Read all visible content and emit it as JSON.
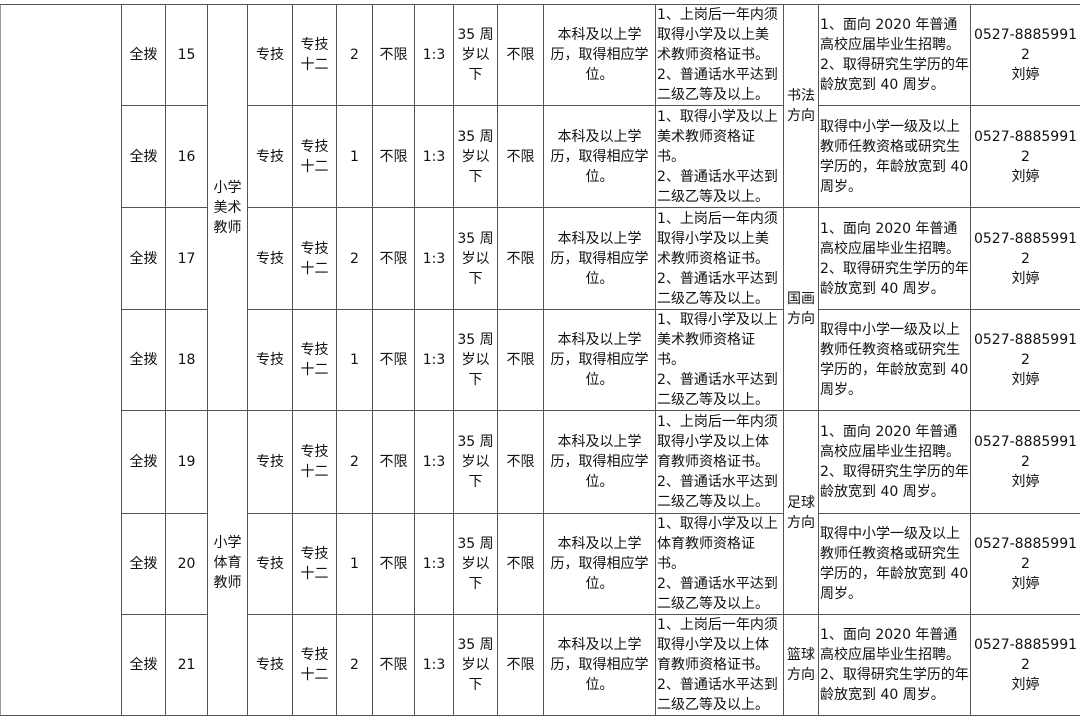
{
  "table": {
    "rows": [
      {
        "type": "全拨",
        "no": "15",
        "position": "小学\n美术\n教师",
        "position_span": 4,
        "category": "专技",
        "grade": "专技\n十二",
        "count": "2",
        "major": "不限",
        "ratio": "1:3",
        "age": "35 周\n岁以\n下",
        "other": "不限",
        "education": "本科及以上学历，取得相应学位。",
        "conditions": "1、上岗后一年内须取得小学及以上美术教师资格证书。\n2、普通话水平达到二级乙等及以上。",
        "direction": "书法\n方向",
        "direction_span": 2,
        "notes": "1、面向 2020 年普通高校应届毕业生招聘。\n2、取得研究生学历的年龄放宽到 40 周岁。",
        "contact": "0527-88859912\n刘婷"
      },
      {
        "type": "全拨",
        "no": "16",
        "category": "专技",
        "grade": "专技\n十二",
        "count": "1",
        "major": "不限",
        "ratio": "1:3",
        "age": "35 周\n岁以\n下",
        "other": "不限",
        "education": "本科及以上学历，取得相应学位。",
        "conditions": "1、取得小学及以上美术教师资格证书。\n2、普通话水平达到二级乙等及以上。",
        "notes": "取得中小学一级及以上教师任教资格或研究生学历的，年龄放宽到 40 周岁。",
        "contact": "0527-88859912\n刘婷"
      },
      {
        "type": "全拨",
        "no": "17",
        "category": "专技",
        "grade": "专技\n十二",
        "count": "2",
        "major": "不限",
        "ratio": "1:3",
        "age": "35 周\n岁以\n下",
        "other": "不限",
        "education": "本科及以上学历，取得相应学位。",
        "conditions": "1、上岗后一年内须取得小学及以上美术教师资格证书。\n2、普通话水平达到二级乙等及以上。",
        "direction": "国画\n方向",
        "direction_span": 2,
        "notes": "1、面向 2020 年普通高校应届毕业生招聘。\n2、取得研究生学历的年龄放宽到 40 周岁。",
        "contact": "0527-88859912\n刘婷"
      },
      {
        "type": "全拨",
        "no": "18",
        "category": "专技",
        "grade": "专技\n十二",
        "count": "1",
        "major": "不限",
        "ratio": "1:3",
        "age": "35 周\n岁以\n下",
        "other": "不限",
        "education": "本科及以上学历，取得相应学位。",
        "conditions": "1、取得小学及以上美术教师资格证书。\n2、普通话水平达到二级乙等及以上。",
        "notes": "取得中小学一级及以上教师任教资格或研究生学历的，年龄放宽到 40 周岁。",
        "contact": "0527-88859912\n刘婷"
      },
      {
        "type": "全拨",
        "no": "19",
        "position": "小学\n体育\n教师",
        "position_span": 3,
        "category": "专技",
        "grade": "专技\n十二",
        "count": "2",
        "major": "不限",
        "ratio": "1:3",
        "age": "35 周\n岁以\n下",
        "other": "不限",
        "education": "本科及以上学历，取得相应学位。",
        "conditions": "1、上岗后一年内须取得小学及以上体育教师资格证书。\n2、普通话水平达到二级乙等及以上。",
        "direction": "足球\n方向",
        "direction_span": 2,
        "notes": "1、面向 2020 年普通高校应届毕业生招聘。\n2、取得研究生学历的年龄放宽到 40 周岁。",
        "contact": "0527-88859912\n刘婷"
      },
      {
        "type": "全拨",
        "no": "20",
        "category": "专技",
        "grade": "专技\n十二",
        "count": "1",
        "major": "不限",
        "ratio": "1:3",
        "age": "35 周\n岁以\n下",
        "other": "不限",
        "education": "本科及以上学历，取得相应学位。",
        "conditions": "1、取得小学及以上体育教师资格证书。\n2、普通话水平达到二级乙等及以上。",
        "notes": "取得中小学一级及以上教师任教资格或研究生学历的，年龄放宽到 40 周岁。",
        "contact": "0527-88859912\n刘婷"
      },
      {
        "type": "全拨",
        "no": "21",
        "category": "专技",
        "grade": "专技\n十二",
        "count": "2",
        "major": "不限",
        "ratio": "1:3",
        "age": "35 周\n岁以\n下",
        "other": "不限",
        "education": "本科及以上学历，取得相应学位。",
        "conditions": "1、上岗后一年内须取得小学及以上体育教师资格证书。\n2、普通话水平达到二级乙等及以上。",
        "direction": "篮球\n方向",
        "direction_span": 1,
        "notes": "1、面向 2020 年普通高校应届毕业生招聘。\n2、取得研究生学历的年龄放宽到 40 周岁。",
        "contact": "0527-88859912\n刘婷"
      }
    ]
  }
}
